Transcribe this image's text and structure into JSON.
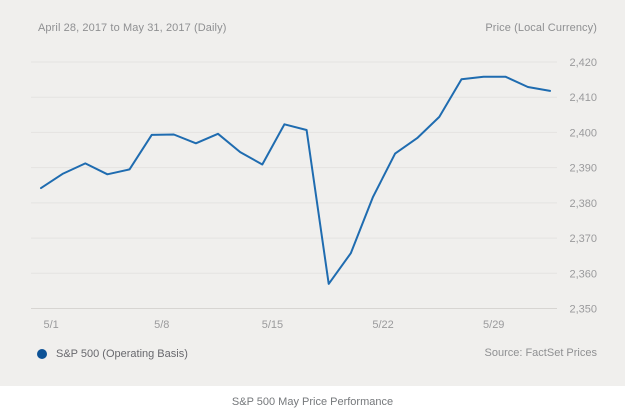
{
  "header": {
    "date_range": "April 28, 2017 to May 31, 2017 (Daily)",
    "axis_title": "Price (Local Currency)"
  },
  "legend": {
    "series_label": "S&P 500 (Operating Basis)"
  },
  "source": "Source: FactSet Prices",
  "caption": "S&P 500 May Price Performance",
  "colors": {
    "line": "#1f6cb0",
    "legend_dot": "#0d5296",
    "card_bg": "#f0efed",
    "gridline": "#e4e3e1",
    "axis_line": "#d7d5d2",
    "tick_text": "#9a9a9c"
  },
  "chart_data": {
    "type": "line",
    "title": "S&P 500 May Price Performance",
    "subtitle": "April 28, 2017 to May 31, 2017 (Daily)",
    "ylabel": "Price (Local Currency)",
    "grid": true,
    "legend_position": "bottom-left",
    "x": [
      "4/28",
      "5/1",
      "5/2",
      "5/3",
      "5/4",
      "5/5",
      "5/8",
      "5/9",
      "5/10",
      "5/11",
      "5/12",
      "5/15",
      "5/16",
      "5/17",
      "5/18",
      "5/19",
      "5/22",
      "5/23",
      "5/24",
      "5/25",
      "5/26",
      "5/29",
      "5/30",
      "5/31"
    ],
    "series": [
      {
        "name": "S&P 500 (Operating Basis)",
        "values": [
          2384.2,
          2388.3,
          2391.2,
          2388.1,
          2389.5,
          2399.3,
          2399.4,
          2396.9,
          2399.6,
          2394.4,
          2390.9,
          2402.3,
          2400.7,
          2357.0,
          2365.7,
          2381.7,
          2394.0,
          2398.4,
          2404.4,
          2415.1,
          2415.8,
          2415.8,
          2412.9,
          2411.8
        ]
      }
    ],
    "ylim": [
      2350,
      2420
    ],
    "y_ticks": [
      2350,
      2360,
      2370,
      2380,
      2390,
      2400,
      2410,
      2420
    ],
    "y_tick_labels": [
      "2,350",
      "2,360",
      "2,370",
      "2,380",
      "2,390",
      "2,400",
      "2,410",
      "2,420"
    ],
    "x_tick_indices": [
      1,
      6,
      11,
      16,
      21
    ],
    "x_tick_labels": [
      "5/1",
      "5/8",
      "5/15",
      "5/22",
      "5/29"
    ]
  }
}
